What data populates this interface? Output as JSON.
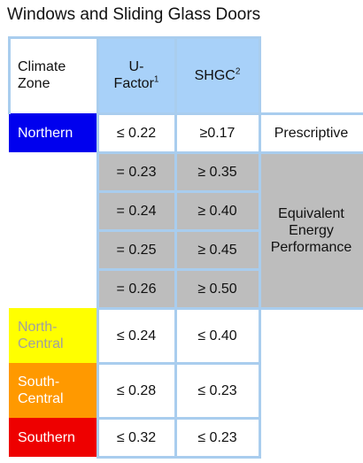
{
  "title": "Windows and Sliding Glass Doors",
  "header": {
    "climate_zone_line1": "Climate",
    "climate_zone_line2": "Zone",
    "u_factor_line1": "U-",
    "u_factor_line2": "Factor",
    "u_factor_note": "1",
    "shgc": "SHGC",
    "shgc_note": "2"
  },
  "rows": [
    {
      "zone": "Northern",
      "u": "≤ 0.22",
      "shgc": "≥0.17"
    },
    {
      "zone": "",
      "u": "= 0.23",
      "shgc": "≥ 0.35"
    },
    {
      "zone": "",
      "u": "= 0.24",
      "shgc": "≥ 0.40"
    },
    {
      "zone": "",
      "u": "= 0.25",
      "shgc": "≥ 0.45"
    },
    {
      "zone": "",
      "u": "= 0.26",
      "shgc": "≥ 0.50"
    },
    {
      "zone_line1": "North-",
      "zone_line2": "Central",
      "u": "≤ 0.24",
      "shgc": "≤ 0.40"
    },
    {
      "zone_line1": "South-",
      "zone_line2": "Central",
      "u": "≤ 0.28",
      "shgc": "≤ 0.23"
    },
    {
      "zone": "Southern",
      "u": "≤ 0.32",
      "shgc": "≤ 0.23"
    }
  ],
  "notes": {
    "prescriptive": "Prescriptive",
    "equivalent_line1": "Equivalent",
    "equivalent_line2": "Energy",
    "equivalent_line3": "Performance"
  },
  "colors": {
    "header_blue": "#a8d1f9",
    "northern": "#0000ee",
    "north_central": "#ffff00",
    "south_central": "#ff9900",
    "southern": "#ee0000",
    "gray": "#bdbdbd",
    "grid": "#a9cdee"
  }
}
